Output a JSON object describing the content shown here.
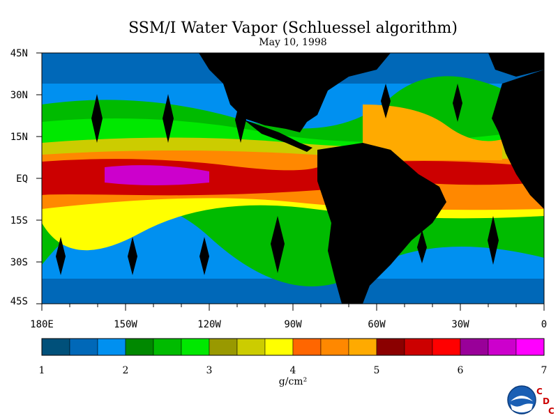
{
  "title": "SSM/I Water Vapor (Schluessel algorithm)",
  "subtitle": "May 10, 1998",
  "map": {
    "lat_labels": [
      "45N",
      "30N",
      "15N",
      "EQ",
      "15S",
      "30S",
      "45S"
    ],
    "lon_labels": [
      "180E",
      "150W",
      "120W",
      "90W",
      "60W",
      "30W",
      "0"
    ],
    "ocean_color": "#1460a8",
    "land_color": "#000000"
  },
  "colorbar": {
    "colors": [
      "#00507a",
      "#0068b8",
      "#0090f0",
      "#008800",
      "#00bb00",
      "#00e800",
      "#999900",
      "#cccc00",
      "#ffff00",
      "#ff6600",
      "#ff8800",
      "#ffaa00",
      "#8b0000",
      "#cc0000",
      "#ff0000",
      "#990099",
      "#cc00cc",
      "#ff00ff"
    ],
    "tick_labels": [
      "1",
      "2",
      "3",
      "4",
      "5",
      "6",
      "7"
    ],
    "unit": "g/cm²"
  },
  "logo": {
    "letters": [
      "C",
      "D",
      "C"
    ],
    "letter_color": "#cc0000"
  }
}
